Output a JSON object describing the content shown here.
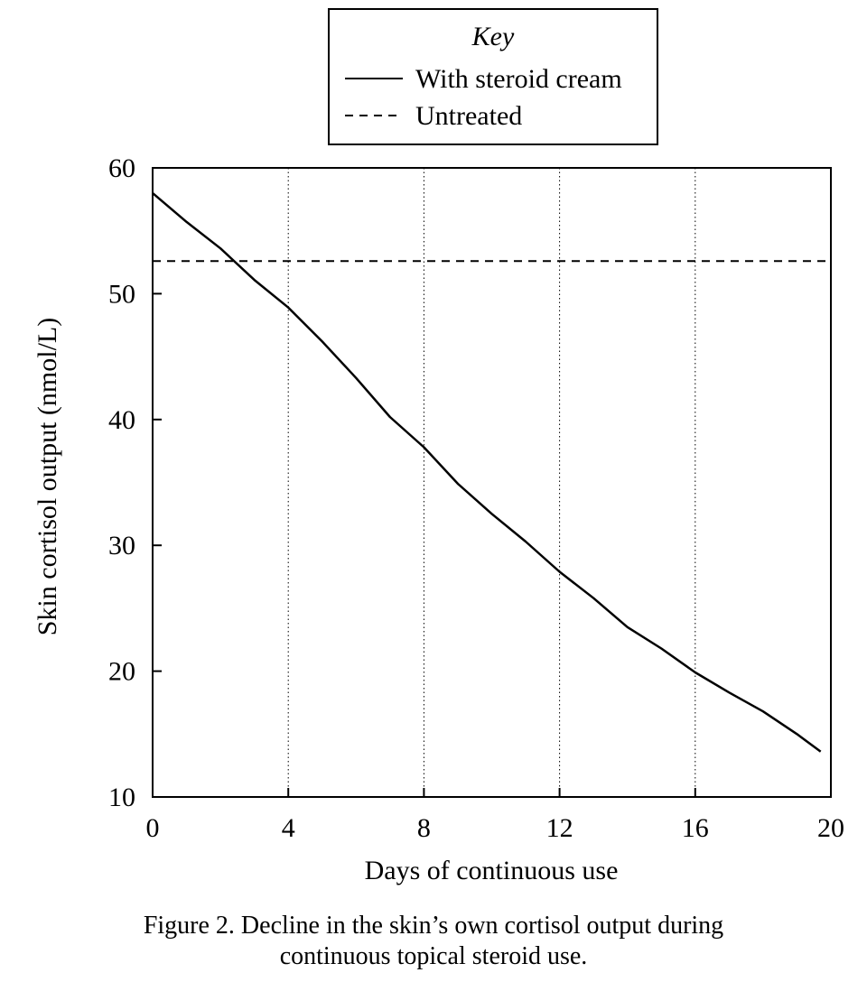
{
  "figure": {
    "caption_line1": "Figure 2. Decline in the skin’s own cortisol output during",
    "caption_line2": "continuous topical steroid use."
  },
  "chart_data": {
    "type": "line",
    "title": "",
    "xlabel": "Days of continuous use",
    "ylabel": "Skin cortisol output (nmol/L)",
    "xlim": [
      0,
      20
    ],
    "ylim": [
      10,
      60
    ],
    "x_ticks": [
      0,
      4,
      8,
      12,
      16,
      20
    ],
    "y_ticks": [
      10,
      20,
      30,
      40,
      50,
      60
    ],
    "grid": "vertical dotted lines at x ticks",
    "legend": {
      "title": "Key",
      "placement": "top-center, above plot",
      "entries": [
        {
          "label": "With steroid cream",
          "style": "solid"
        },
        {
          "label": "Untreated",
          "style": "dashed"
        }
      ]
    },
    "series": [
      {
        "name": "With steroid cream",
        "style": "solid",
        "color": "#000000",
        "x": [
          0,
          1,
          2,
          3,
          4,
          5,
          6,
          7,
          8,
          9,
          10,
          11,
          12,
          13,
          14,
          15,
          16,
          17,
          18,
          19,
          19.7
        ],
        "y": [
          58.0,
          55.7,
          53.6,
          51.1,
          48.9,
          46.2,
          43.3,
          40.2,
          37.8,
          34.9,
          32.5,
          30.3,
          27.9,
          25.8,
          23.5,
          21.8,
          19.9,
          18.3,
          16.8,
          15.0,
          13.6
        ]
      },
      {
        "name": "Untreated",
        "style": "dashed",
        "color": "#000000",
        "x": [
          0,
          20
        ],
        "y": [
          52.6,
          52.6
        ]
      }
    ]
  }
}
